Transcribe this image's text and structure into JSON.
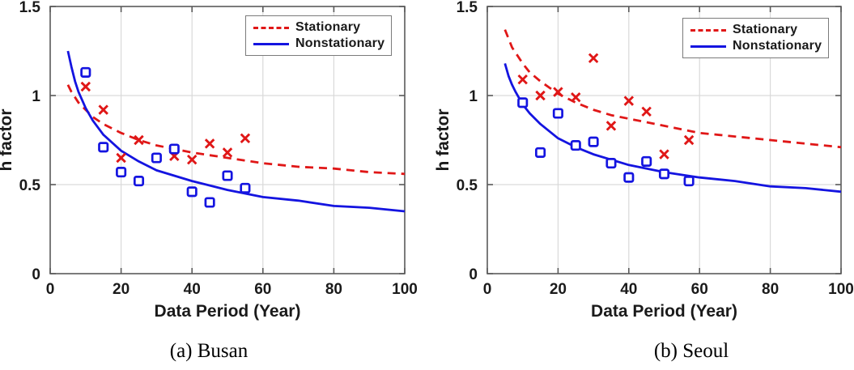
{
  "figure": {
    "background": "#ffffff",
    "colors": {
      "stationary": "#e01717",
      "nonstationary": "#1414e0",
      "grid": "#d9d9d9",
      "axis": "#5a5a5a",
      "text": "#1a1a1a",
      "legend_border": "#7b7b7b"
    },
    "legend": {
      "stationary_label": "Stationary",
      "nonstationary_label": "Nonstationary"
    }
  },
  "chart_data": [
    {
      "type": "scatter",
      "title": "(a) Busan",
      "xlabel": "Data Period (Year)",
      "ylabel": "h factor",
      "xlim": [
        0,
        100
      ],
      "ylim": [
        0,
        1.5
      ],
      "xticks": [
        0,
        20,
        40,
        60,
        80,
        100
      ],
      "xtick_labels": [
        "0",
        "20",
        "40",
        "60",
        "80",
        "100"
      ],
      "yticks": [
        0,
        0.5,
        1,
        1.5
      ],
      "ytick_labels": [
        "0",
        "0.5",
        "1",
        "1.5"
      ],
      "grid": true,
      "legend_position": "northeast",
      "legend_entries": [
        "Stationary",
        "Nonstationary"
      ],
      "series": [
        {
          "name": "Stationary fitted curve",
          "kind": "line",
          "line_style": "dashed",
          "color_key": "stationary",
          "points": [
            [
              5,
              1.06
            ],
            [
              6,
              1.02
            ],
            [
              7,
              0.99
            ],
            [
              8,
              0.96
            ],
            [
              10,
              0.92
            ],
            [
              12,
              0.88
            ],
            [
              15,
              0.84
            ],
            [
              20,
              0.79
            ],
            [
              25,
              0.75
            ],
            [
              30,
              0.72
            ],
            [
              35,
              0.7
            ],
            [
              40,
              0.68
            ],
            [
              50,
              0.65
            ],
            [
              60,
              0.62
            ],
            [
              70,
              0.6
            ],
            [
              80,
              0.59
            ],
            [
              90,
              0.57
            ],
            [
              100,
              0.56
            ]
          ]
        },
        {
          "name": "Nonstationary fitted curve",
          "kind": "line",
          "line_style": "solid",
          "color_key": "nonstationary",
          "points": [
            [
              5,
              1.25
            ],
            [
              6,
              1.16
            ],
            [
              7,
              1.08
            ],
            [
              8,
              1.02
            ],
            [
              10,
              0.93
            ],
            [
              12,
              0.86
            ],
            [
              15,
              0.78
            ],
            [
              20,
              0.69
            ],
            [
              25,
              0.63
            ],
            [
              30,
              0.58
            ],
            [
              35,
              0.55
            ],
            [
              40,
              0.52
            ],
            [
              50,
              0.47
            ],
            [
              60,
              0.43
            ],
            [
              70,
              0.41
            ],
            [
              80,
              0.38
            ],
            [
              90,
              0.37
            ],
            [
              100,
              0.35
            ]
          ]
        },
        {
          "name": "Stationary data points",
          "kind": "scatter",
          "marker": "x",
          "color_key": "stationary",
          "points": [
            [
              10,
              1.05
            ],
            [
              15,
              0.92
            ],
            [
              20,
              0.65
            ],
            [
              25,
              0.75
            ],
            [
              35,
              0.66
            ],
            [
              40,
              0.64
            ],
            [
              45,
              0.73
            ],
            [
              50,
              0.68
            ],
            [
              55,
              0.76
            ]
          ]
        },
        {
          "name": "Nonstationary data points",
          "kind": "scatter",
          "marker": "square",
          "color_key": "nonstationary",
          "points": [
            [
              10,
              1.13
            ],
            [
              15,
              0.71
            ],
            [
              20,
              0.57
            ],
            [
              25,
              0.52
            ],
            [
              30,
              0.65
            ],
            [
              35,
              0.7
            ],
            [
              40,
              0.46
            ],
            [
              45,
              0.4
            ],
            [
              50,
              0.55
            ],
            [
              55,
              0.48
            ]
          ]
        }
      ]
    },
    {
      "type": "scatter",
      "title": "(b) Seoul",
      "xlabel": "Data Period (Year)",
      "ylabel": "h factor",
      "xlim": [
        0,
        100
      ],
      "ylim": [
        0,
        1.5
      ],
      "xticks": [
        0,
        20,
        40,
        60,
        80,
        100
      ],
      "xtick_labels": [
        "0",
        "20",
        "40",
        "60",
        "80",
        "100"
      ],
      "yticks": [
        0,
        0.5,
        1,
        1.5
      ],
      "ytick_labels": [
        "0",
        "0.5",
        "1",
        "1.5"
      ],
      "grid": true,
      "legend_position": "northeast",
      "legend_entries": [
        "Stationary",
        "Nonstationary"
      ],
      "series": [
        {
          "name": "Stationary fitted curve",
          "kind": "line",
          "line_style": "dashed",
          "color_key": "stationary",
          "points": [
            [
              5,
              1.37
            ],
            [
              6,
              1.32
            ],
            [
              7,
              1.27
            ],
            [
              8,
              1.24
            ],
            [
              10,
              1.18
            ],
            [
              12,
              1.13
            ],
            [
              15,
              1.08
            ],
            [
              20,
              1.01
            ],
            [
              25,
              0.96
            ],
            [
              30,
              0.92
            ],
            [
              35,
              0.89
            ],
            [
              40,
              0.87
            ],
            [
              50,
              0.83
            ],
            [
              60,
              0.79
            ],
            [
              70,
              0.77
            ],
            [
              80,
              0.75
            ],
            [
              90,
              0.73
            ],
            [
              100,
              0.71
            ]
          ]
        },
        {
          "name": "Nonstationary fitted curve",
          "kind": "line",
          "line_style": "solid",
          "color_key": "nonstationary",
          "points": [
            [
              5,
              1.18
            ],
            [
              6,
              1.11
            ],
            [
              7,
              1.06
            ],
            [
              8,
              1.02
            ],
            [
              10,
              0.95
            ],
            [
              12,
              0.9
            ],
            [
              15,
              0.84
            ],
            [
              20,
              0.76
            ],
            [
              25,
              0.71
            ],
            [
              30,
              0.67
            ],
            [
              35,
              0.64
            ],
            [
              40,
              0.61
            ],
            [
              50,
              0.57
            ],
            [
              60,
              0.54
            ],
            [
              70,
              0.52
            ],
            [
              80,
              0.49
            ],
            [
              90,
              0.48
            ],
            [
              100,
              0.46
            ]
          ]
        },
        {
          "name": "Stationary data points",
          "kind": "scatter",
          "marker": "x",
          "color_key": "stationary",
          "points": [
            [
              10,
              1.09
            ],
            [
              15,
              1.0
            ],
            [
              20,
              1.02
            ],
            [
              25,
              0.99
            ],
            [
              30,
              1.21
            ],
            [
              35,
              0.83
            ],
            [
              40,
              0.97
            ],
            [
              45,
              0.91
            ],
            [
              50,
              0.67
            ],
            [
              57,
              0.75
            ]
          ]
        },
        {
          "name": "Nonstationary data points",
          "kind": "scatter",
          "marker": "square",
          "color_key": "nonstationary",
          "points": [
            [
              10,
              0.96
            ],
            [
              15,
              0.68
            ],
            [
              20,
              0.9
            ],
            [
              25,
              0.72
            ],
            [
              30,
              0.74
            ],
            [
              35,
              0.62
            ],
            [
              40,
              0.54
            ],
            [
              45,
              0.63
            ],
            [
              50,
              0.56
            ],
            [
              57,
              0.52
            ]
          ]
        }
      ]
    }
  ]
}
